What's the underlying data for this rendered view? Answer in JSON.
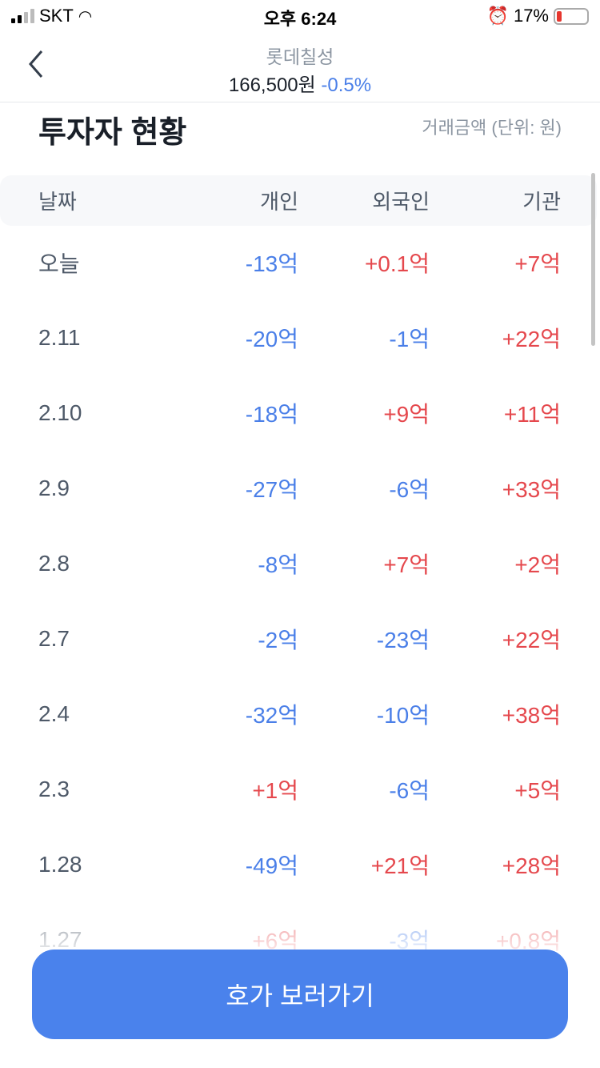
{
  "status_bar": {
    "carrier": "SKT",
    "time": "오후 6:24",
    "battery": "17%",
    "battery_level": 0.17
  },
  "header": {
    "stock_name": "롯데칠성",
    "price": "166,500원",
    "change": "-0.5%"
  },
  "section": {
    "title": "투자자 현황",
    "unit": "거래금액 (단위: 원)"
  },
  "table": {
    "columns": [
      "날짜",
      "개인",
      "외국인",
      "기관"
    ],
    "rows": [
      {
        "date": "오늘",
        "individual": "-13억",
        "foreign": "+0.1억",
        "institution": "+7억"
      },
      {
        "date": "2.11",
        "individual": "-20억",
        "foreign": "-1억",
        "institution": "+22억"
      },
      {
        "date": "2.10",
        "individual": "-18억",
        "foreign": "+9억",
        "institution": "+11억"
      },
      {
        "date": "2.9",
        "individual": "-27억",
        "foreign": "-6억",
        "institution": "+33억"
      },
      {
        "date": "2.8",
        "individual": "-8억",
        "foreign": "+7억",
        "institution": "+2억"
      },
      {
        "date": "2.7",
        "individual": "-2억",
        "foreign": "-23억",
        "institution": "+22억"
      },
      {
        "date": "2.4",
        "individual": "-32억",
        "foreign": "-10억",
        "institution": "+38억"
      },
      {
        "date": "2.3",
        "individual": "+1억",
        "foreign": "-6억",
        "institution": "+5억"
      },
      {
        "date": "1.28",
        "individual": "-49억",
        "foreign": "+21억",
        "institution": "+28억"
      },
      {
        "date": "1.27",
        "individual": "+6억",
        "foreign": "-3억",
        "institution": "+0.8억"
      }
    ]
  },
  "cta": {
    "label": "호가 보러가기"
  },
  "colors": {
    "negative": "#4a7fe8",
    "positive": "#e5484d",
    "button": "#4a82ec"
  }
}
